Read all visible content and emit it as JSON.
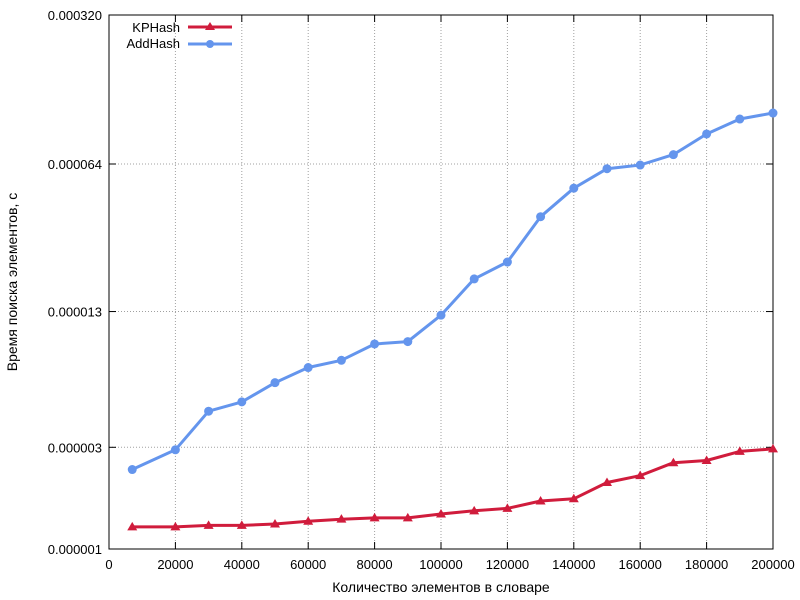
{
  "chart_data": {
    "type": "line",
    "xlabel": "Количество элементов в словаре",
    "ylabel": "Время поиска элементов, с",
    "xlim": [
      0,
      200000
    ],
    "ylim": [
      1e-06,
      0.00032
    ],
    "y_scale": "log",
    "grid": true,
    "legend_position": "top-left",
    "x_ticks": [
      0,
      20000,
      40000,
      60000,
      80000,
      100000,
      120000,
      140000,
      160000,
      180000,
      200000
    ],
    "x_tick_labels": [
      "0",
      "20000",
      "40000",
      "60000",
      "80000",
      "100000",
      "120000",
      "140000",
      "160000",
      "180000",
      "200000"
    ],
    "y_ticks": [
      1e-06,
      3e-06,
      1.3e-05,
      6.4e-05,
      0.00032
    ],
    "y_tick_labels": [
      "0.000001",
      "0.000003",
      "0.000013",
      "0.000064",
      "0.000320"
    ],
    "x": [
      7000,
      20000,
      30000,
      40000,
      50000,
      60000,
      70000,
      80000,
      90000,
      100000,
      110000,
      120000,
      130000,
      140000,
      150000,
      160000,
      170000,
      180000,
      190000,
      200000
    ],
    "series": [
      {
        "name": "KPHash",
        "color": "#d01c3c",
        "marker": "triangle",
        "values": [
          1.27e-06,
          1.27e-06,
          1.29e-06,
          1.29e-06,
          1.31e-06,
          1.35e-06,
          1.38e-06,
          1.4e-06,
          1.4e-06,
          1.46e-06,
          1.51e-06,
          1.55e-06,
          1.68e-06,
          1.72e-06,
          2.05e-06,
          2.21e-06,
          2.54e-06,
          2.6e-06,
          2.87e-06,
          2.95e-06
        ]
      },
      {
        "name": "AddHash",
        "color": "#6495ed",
        "marker": "circle",
        "values": [
          2.36e-06,
          2.92e-06,
          4.43e-06,
          4.9e-06,
          6.03e-06,
          7.1e-06,
          7.68e-06,
          9.16e-06,
          9.4e-06,
          1.25e-05,
          1.85e-05,
          2.22e-05,
          3.62e-05,
          4.93e-05,
          6.08e-05,
          6.33e-05,
          7.08e-05,
          8.85e-05,
          0.000104,
          0.000111
        ]
      }
    ]
  }
}
